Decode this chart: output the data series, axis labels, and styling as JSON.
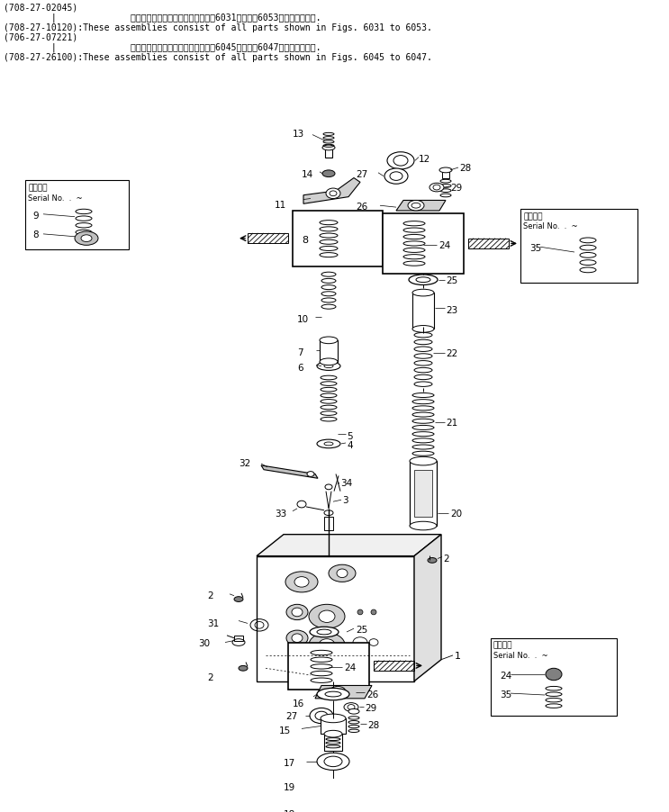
{
  "bg_color": "#ffffff",
  "header": [
    "(708-27-02045)",
    "         |              これらのアセンブリの構成部品は嘶6031図から嘶6053図まで含みます.",
    "(708-27-10120):These assemblies consist of all parts shown in Figs. 6031 to 6053.",
    "(706-27-07221)",
    "         |              これらのアセンブリの構成部品は嘶6045図から嘶6047図まで含みます.",
    "(708-27-26100):These assemblies consist of all parts shown in Figs. 6045 to 6047."
  ],
  "font_size_header": 7.0
}
